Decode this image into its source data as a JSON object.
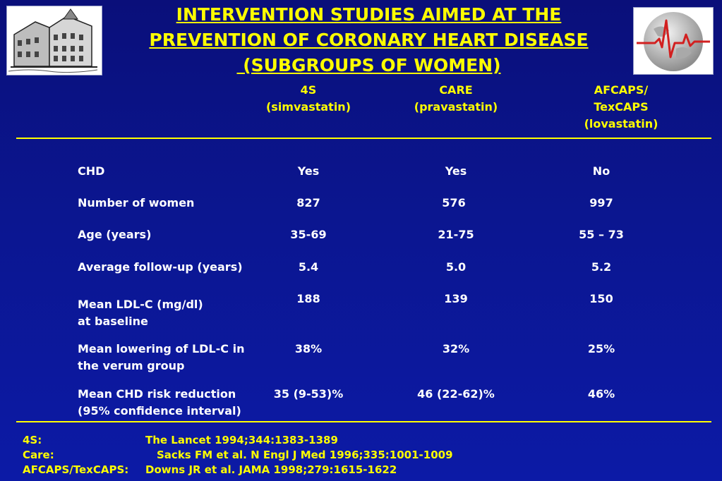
{
  "title": {
    "line1": "INTERVENTION STUDIES AIMED AT THE",
    "line2": "PREVENTION OF CORONARY HEART DISEASE",
    "line3": " (SUBGROUPS OF WOMEN)"
  },
  "columns": [
    {
      "line1": "4S",
      "line2": "(simvastatin)",
      "line3": ""
    },
    {
      "line1": "CARE",
      "line2": "(pravastatin)",
      "line3": ""
    },
    {
      "line1": "AFCAPS/",
      "line2": "TexCAPS",
      "line3": "(lovastatin)"
    }
  ],
  "rows": [
    {
      "label1": "CHD",
      "label2": "",
      "values": [
        "Yes",
        "Yes",
        "No"
      ]
    },
    {
      "label1": "Number of women",
      "label2": "",
      "values": [
        "827",
        "576",
        "997"
      ]
    },
    {
      "label1": "Age (years)",
      "label2": "",
      "values": [
        "35-69",
        "21-75",
        "55 – 73"
      ]
    },
    {
      "label1": "Average follow-up (years)",
      "label2": "",
      "values": [
        "5.4",
        "5.0",
        "5.2"
      ]
    },
    {
      "label1": "Mean LDL-C (mg/dl)",
      "label2": "at baseline",
      "values": [
        "188",
        "139",
        "150"
      ]
    },
    {
      "label1": "Mean lowering of LDL-C in",
      "label2": "the verum group",
      "values": [
        "38%",
        "32%",
        "25%"
      ]
    },
    {
      "label1": "Mean CHD risk reduction",
      "label2": "(95% confidence interval)",
      "values": [
        "35 (9-53)%",
        "46 (22-62)%",
        "46%"
      ]
    }
  ],
  "references": [
    {
      "study": "4S:",
      "citation": "The Lancet 1994;344:1383-1389"
    },
    {
      "study": "Care:",
      "citation": "Sacks FM et al. N Engl J Med 1996;335:1001-1009"
    },
    {
      "study": "AFCAPS/TexCAPS:",
      "citation": "Downs JR et al. JAMA 1998;279:1615-1622"
    }
  ],
  "colors": {
    "background": "#0b1690",
    "accent": "#ffff00",
    "text": "#ffffff"
  },
  "icons": [
    "building-logo-icon",
    "ecg-globe-logo-icon"
  ]
}
